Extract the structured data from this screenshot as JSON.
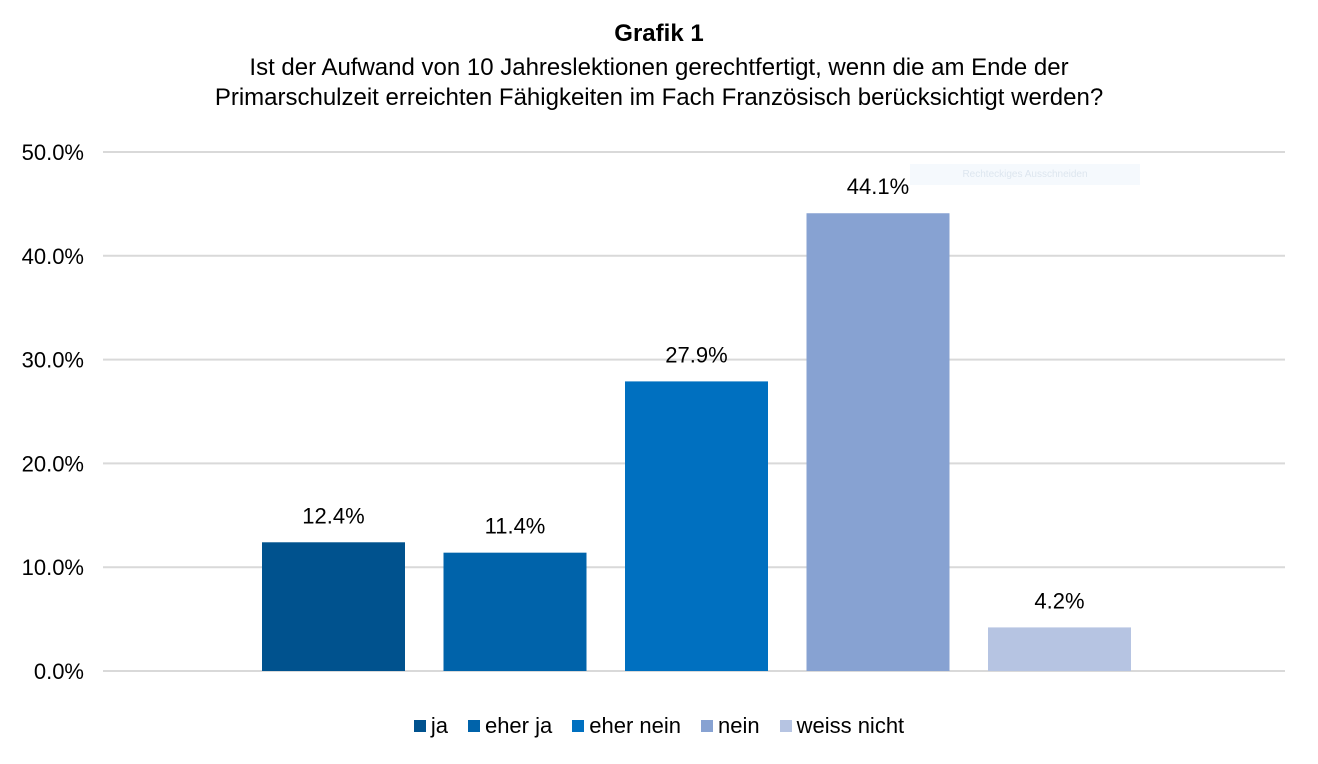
{
  "chart_data": {
    "type": "bar",
    "title": "Grafik 1",
    "subtitle": [
      "Ist der Aufwand von 10 Jahreslektionen gerechtfertigt, wenn die am Ende der",
      "Primarschulzeit erreichten Fähigkeiten im Fach Französisch berücksichtigt werden?"
    ],
    "categories": [
      "ja",
      "eher ja",
      "eher nein",
      "nein",
      "weiss nicht"
    ],
    "values": [
      12.4,
      11.4,
      27.9,
      44.1,
      4.2
    ],
    "data_labels": [
      "12.4%",
      "11.4%",
      "27.9%",
      "44.1%",
      "4.2%"
    ],
    "colors": [
      "#00528E",
      "#0063AA",
      "#0070C0",
      "#87A2D2",
      "#B6C4E2"
    ],
    "ylim": [
      0,
      50
    ],
    "yticks": [
      "0.0%",
      "10.0%",
      "20.0%",
      "30.0%",
      "40.0%",
      "50.0%"
    ],
    "xlabel": "",
    "ylabel": "",
    "grid": true,
    "legend": "bottom"
  },
  "overlay": {
    "snip_label": "Rechteckiges Ausschneiden"
  }
}
